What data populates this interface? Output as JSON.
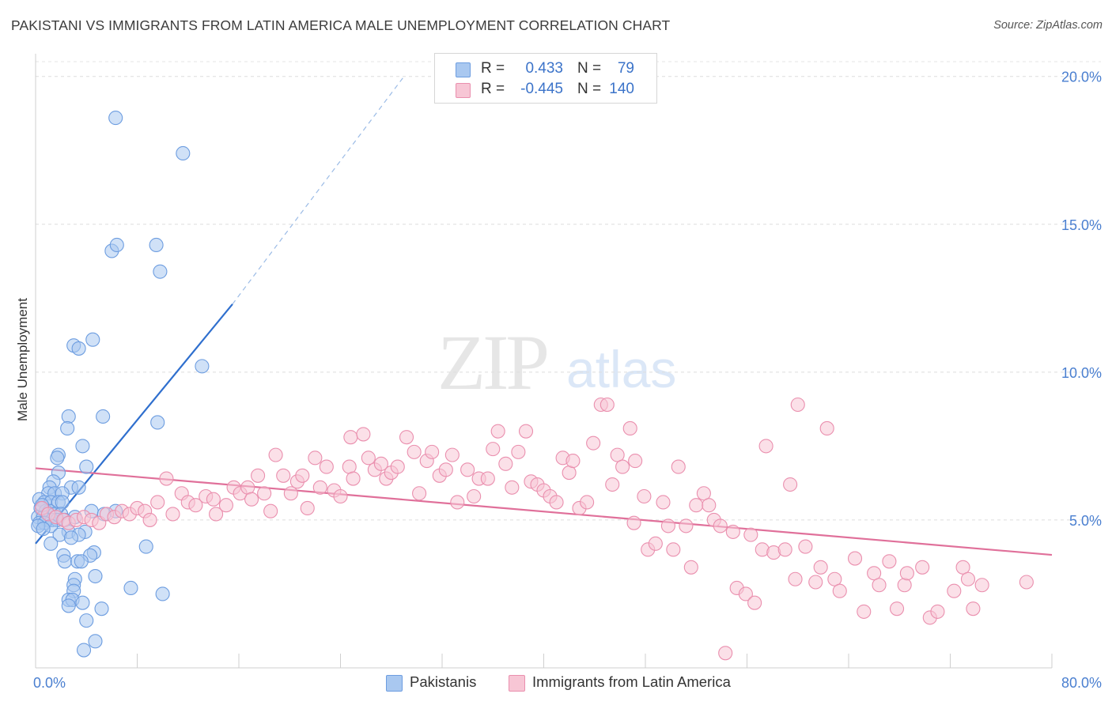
{
  "title": "PAKISTANI VS IMMIGRANTS FROM LATIN AMERICA MALE UNEMPLOYMENT CORRELATION CHART",
  "source": "Source: ZipAtlas.com",
  "watermark": {
    "zip": "ZIP",
    "atlas": "atlas"
  },
  "legend": {
    "rows": [
      {
        "r_label": "R =",
        "r_value": "0.433",
        "n_label": "N =",
        "n_value": "79",
        "color": "#a9c8f0",
        "border": "#6d9de0"
      },
      {
        "r_label": "R =",
        "r_value": "-0.445",
        "n_label": "N =",
        "n_value": "140",
        "color": "#f7c6d5",
        "border": "#ea8fae"
      }
    ]
  },
  "bottom_legend": [
    {
      "label": "Pakistanis",
      "color": "#a9c8f0",
      "border": "#6d9de0"
    },
    {
      "label": "Immigrants from Latin America",
      "color": "#f7c6d5",
      "border": "#ea8fae"
    }
  ],
  "chart_data": {
    "type": "scatter",
    "title": "PAKISTANI VS IMMIGRANTS FROM LATIN AMERICA MALE UNEMPLOYMENT CORRELATION CHART",
    "xlabel": "",
    "ylabel": "Male Unemployment",
    "xlim": [
      0,
      80
    ],
    "ylim": [
      0,
      20.5
    ],
    "x_tick_labels": [
      "0.0%",
      "80.0%"
    ],
    "y_ticks": [
      5,
      10,
      15,
      20
    ],
    "y_tick_labels": [
      "5.0%",
      "10.0%",
      "15.0%",
      "20.0%"
    ],
    "grid": "horizontal dashed",
    "legend_position": "top-center",
    "series": [
      {
        "name": "Pakistanis",
        "color": "#6d9de0",
        "fill": "#a9c8f0",
        "trend": {
          "x": [
            0,
            15.5
          ],
          "y": [
            4.2,
            12.3
          ],
          "extend_to": [
            29,
            20.0
          ],
          "color": "#2f6fce"
        },
        "points": [
          [
            6.3,
            18.6
          ],
          [
            11.6,
            17.4
          ],
          [
            6.0,
            14.1
          ],
          [
            6.4,
            14.3
          ],
          [
            9.5,
            14.3
          ],
          [
            9.8,
            13.4
          ],
          [
            4.5,
            11.1
          ],
          [
            3.0,
            10.9
          ],
          [
            3.4,
            10.8
          ],
          [
            13.1,
            10.2
          ],
          [
            2.6,
            8.5
          ],
          [
            2.5,
            8.1
          ],
          [
            5.3,
            8.5
          ],
          [
            9.6,
            8.3
          ],
          [
            3.7,
            7.5
          ],
          [
            1.8,
            7.2
          ],
          [
            1.7,
            7.1
          ],
          [
            4.0,
            6.8
          ],
          [
            1.8,
            6.6
          ],
          [
            1.4,
            6.3
          ],
          [
            1.1,
            6.1
          ],
          [
            2.8,
            6.1
          ],
          [
            3.4,
            6.1
          ],
          [
            1.0,
            5.9
          ],
          [
            1.5,
            5.9
          ],
          [
            2.1,
            5.9
          ],
          [
            0.3,
            5.7
          ],
          [
            0.7,
            5.6
          ],
          [
            1.2,
            5.6
          ],
          [
            1.8,
            5.6
          ],
          [
            2.1,
            5.6
          ],
          [
            0.4,
            5.4
          ],
          [
            0.8,
            5.3
          ],
          [
            1.1,
            5.3
          ],
          [
            1.5,
            5.2
          ],
          [
            2.0,
            5.2
          ],
          [
            0.2,
            5.1
          ],
          [
            0.6,
            5.1
          ],
          [
            0.9,
            5.0
          ],
          [
            1.3,
            5.0
          ],
          [
            1.7,
            5.0
          ],
          [
            0.3,
            4.9
          ],
          [
            0.7,
            4.9
          ],
          [
            1.2,
            4.8
          ],
          [
            0.2,
            4.8
          ],
          [
            0.6,
            4.7
          ],
          [
            4.4,
            5.3
          ],
          [
            6.3,
            5.3
          ],
          [
            5.4,
            5.2
          ],
          [
            2.3,
            5.0
          ],
          [
            3.1,
            5.1
          ],
          [
            2.6,
            4.6
          ],
          [
            3.9,
            4.6
          ],
          [
            1.9,
            4.5
          ],
          [
            3.4,
            4.5
          ],
          [
            2.8,
            4.4
          ],
          [
            1.2,
            4.2
          ],
          [
            8.7,
            4.1
          ],
          [
            4.6,
            3.9
          ],
          [
            4.3,
            3.8
          ],
          [
            2.2,
            3.8
          ],
          [
            2.3,
            3.6
          ],
          [
            3.3,
            3.6
          ],
          [
            3.6,
            3.6
          ],
          [
            4.7,
            3.1
          ],
          [
            3.1,
            3.0
          ],
          [
            3.0,
            2.8
          ],
          [
            7.5,
            2.7
          ],
          [
            3.0,
            2.6
          ],
          [
            10.0,
            2.5
          ],
          [
            2.6,
            2.3
          ],
          [
            2.9,
            2.3
          ],
          [
            2.6,
            2.1
          ],
          [
            3.7,
            2.2
          ],
          [
            5.2,
            2.0
          ],
          [
            4.0,
            1.6
          ],
          [
            4.7,
            0.9
          ],
          [
            3.8,
            0.6
          ],
          [
            0.5,
            5.5
          ]
        ]
      },
      {
        "name": "Immigrants from Latin America",
        "color": "#ea8fae",
        "fill": "#f7c6d5",
        "trend": {
          "x": [
            0,
            80
          ],
          "y": [
            6.75,
            3.82
          ],
          "color": "#e0709a"
        },
        "points": [
          [
            0.5,
            5.4
          ],
          [
            1.0,
            5.2
          ],
          [
            1.6,
            5.1
          ],
          [
            2.2,
            5.0
          ],
          [
            2.6,
            4.9
          ],
          [
            3.2,
            5.0
          ],
          [
            3.8,
            5.1
          ],
          [
            4.4,
            5.0
          ],
          [
            5.0,
            4.9
          ],
          [
            5.6,
            5.2
          ],
          [
            6.2,
            5.1
          ],
          [
            6.8,
            5.3
          ],
          [
            7.4,
            5.2
          ],
          [
            8.0,
            5.4
          ],
          [
            8.6,
            5.3
          ],
          [
            9.0,
            5.0
          ],
          [
            9.6,
            5.6
          ],
          [
            10.3,
            6.4
          ],
          [
            10.8,
            5.2
          ],
          [
            11.5,
            5.9
          ],
          [
            12.0,
            5.6
          ],
          [
            12.6,
            5.5
          ],
          [
            13.4,
            5.8
          ],
          [
            14.0,
            5.7
          ],
          [
            14.2,
            5.2
          ],
          [
            15.0,
            5.5
          ],
          [
            15.6,
            6.1
          ],
          [
            16.1,
            5.9
          ],
          [
            16.7,
            6.1
          ],
          [
            17.0,
            5.7
          ],
          [
            17.5,
            6.5
          ],
          [
            18.0,
            5.9
          ],
          [
            18.5,
            5.3
          ],
          [
            18.9,
            7.2
          ],
          [
            19.5,
            6.5
          ],
          [
            20.1,
            5.9
          ],
          [
            20.6,
            6.3
          ],
          [
            21.0,
            6.5
          ],
          [
            21.4,
            5.4
          ],
          [
            22.0,
            7.1
          ],
          [
            22.4,
            6.1
          ],
          [
            22.9,
            6.8
          ],
          [
            23.5,
            6.0
          ],
          [
            24.0,
            5.8
          ],
          [
            24.7,
            6.8
          ],
          [
            25.0,
            6.4
          ],
          [
            24.8,
            7.8
          ],
          [
            25.8,
            7.9
          ],
          [
            26.2,
            7.1
          ],
          [
            26.7,
            6.7
          ],
          [
            27.2,
            6.9
          ],
          [
            27.6,
            6.4
          ],
          [
            28.0,
            6.6
          ],
          [
            28.5,
            6.8
          ],
          [
            29.2,
            7.8
          ],
          [
            29.8,
            7.3
          ],
          [
            30.2,
            5.9
          ],
          [
            30.8,
            7.0
          ],
          [
            31.2,
            7.3
          ],
          [
            31.8,
            6.5
          ],
          [
            32.3,
            6.7
          ],
          [
            32.8,
            7.2
          ],
          [
            33.2,
            5.6
          ],
          [
            34.0,
            6.7
          ],
          [
            34.5,
            5.8
          ],
          [
            34.9,
            6.4
          ],
          [
            35.6,
            6.4
          ],
          [
            36.0,
            7.4
          ],
          [
            36.4,
            8.0
          ],
          [
            37.0,
            6.9
          ],
          [
            37.5,
            6.1
          ],
          [
            38.0,
            7.3
          ],
          [
            38.6,
            8.0
          ],
          [
            39.0,
            6.3
          ],
          [
            39.5,
            6.2
          ],
          [
            40.0,
            6.0
          ],
          [
            40.5,
            5.8
          ],
          [
            41.0,
            5.6
          ],
          [
            41.5,
            7.1
          ],
          [
            42.0,
            6.6
          ],
          [
            42.3,
            7.0
          ],
          [
            42.8,
            5.4
          ],
          [
            43.4,
            5.6
          ],
          [
            43.9,
            7.6
          ],
          [
            44.5,
            8.9
          ],
          [
            45.0,
            8.9
          ],
          [
            45.4,
            6.2
          ],
          [
            45.8,
            7.2
          ],
          [
            46.2,
            6.8
          ],
          [
            46.8,
            8.1
          ],
          [
            47.1,
            4.9
          ],
          [
            47.2,
            7.0
          ],
          [
            47.9,
            5.8
          ],
          [
            48.2,
            4.0
          ],
          [
            48.8,
            4.2
          ],
          [
            49.4,
            5.6
          ],
          [
            49.8,
            4.8
          ],
          [
            50.2,
            4.0
          ],
          [
            50.6,
            6.8
          ],
          [
            51.2,
            4.8
          ],
          [
            51.6,
            3.4
          ],
          [
            52.0,
            5.5
          ],
          [
            52.6,
            5.9
          ],
          [
            53.0,
            5.5
          ],
          [
            53.4,
            5.0
          ],
          [
            53.9,
            4.8
          ],
          [
            54.3,
            0.5
          ],
          [
            54.9,
            4.6
          ],
          [
            55.2,
            2.7
          ],
          [
            55.9,
            2.5
          ],
          [
            56.3,
            4.5
          ],
          [
            56.6,
            2.2
          ],
          [
            57.2,
            4.0
          ],
          [
            57.5,
            7.5
          ],
          [
            58.1,
            3.9
          ],
          [
            59.0,
            4.0
          ],
          [
            59.4,
            6.2
          ],
          [
            59.8,
            3.0
          ],
          [
            60.0,
            8.9
          ],
          [
            60.6,
            4.1
          ],
          [
            61.4,
            2.9
          ],
          [
            61.8,
            3.4
          ],
          [
            62.3,
            8.1
          ],
          [
            62.9,
            3.0
          ],
          [
            63.3,
            2.6
          ],
          [
            64.5,
            3.7
          ],
          [
            65.2,
            1.9
          ],
          [
            66.0,
            3.2
          ],
          [
            66.4,
            2.8
          ],
          [
            67.2,
            3.6
          ],
          [
            67.8,
            2.0
          ],
          [
            68.4,
            2.8
          ],
          [
            68.6,
            3.2
          ],
          [
            69.8,
            3.4
          ],
          [
            70.4,
            1.7
          ],
          [
            71.0,
            1.9
          ],
          [
            72.3,
            2.6
          ],
          [
            73.0,
            3.4
          ],
          [
            73.4,
            3.0
          ],
          [
            73.8,
            2.0
          ],
          [
            74.5,
            2.8
          ],
          [
            78.0,
            2.9
          ]
        ]
      }
    ]
  }
}
